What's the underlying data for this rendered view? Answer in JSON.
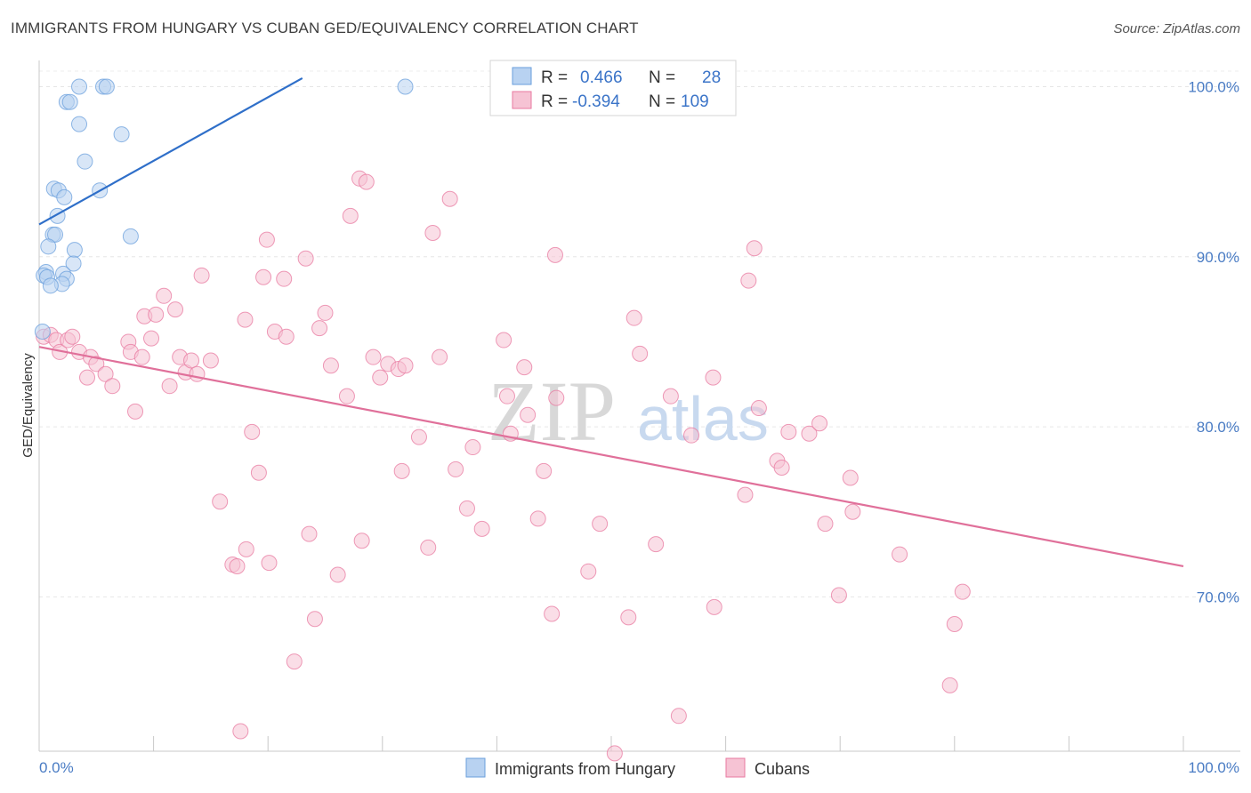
{
  "title": "IMMIGRANTS FROM HUNGARY VS CUBAN GED/EQUIVALENCY CORRELATION CHART",
  "source": "Source: ZipAtlas.com",
  "watermark": {
    "part1": "ZIP",
    "part2": "atlas"
  },
  "legend": {
    "rows": [
      {
        "r_label": "R =",
        "r_value": "0.466",
        "n_label": "N =",
        "n_value": "28"
      },
      {
        "r_label": "R =",
        "r_value": "-0.394",
        "n_label": "N =",
        "n_value": "109"
      }
    ]
  },
  "bottom_legend": [
    "Immigrants from Hungary",
    "Cubans"
  ],
  "chart_data": {
    "type": "scatter",
    "title": "IMMIGRANTS FROM HUNGARY VS CUBAN GED/EQUIVALENCY CORRELATION CHART",
    "xlabel": "",
    "ylabel": "GED/Equivalency",
    "x_tick_labels": [
      "0.0%",
      "100.0%"
    ],
    "y_tick_labels": [
      "100.0%",
      "90.0%",
      "80.0%",
      "70.0%"
    ],
    "y_ticks": [
      100,
      90,
      80,
      70
    ],
    "xlim": [
      0,
      100
    ],
    "ylim": [
      60.5,
      101
    ],
    "grid": true,
    "legend_position": "top-center",
    "series": [
      {
        "name": "Immigrants from Hungary",
        "color": "#6a9fdc",
        "fill": "#b8d2f1",
        "trend": {
          "x": [
            0,
            23
          ],
          "y": [
            91.9,
            100.5
          ]
        },
        "points": [
          [
            3.5,
            100.0
          ],
          [
            5.6,
            100.0
          ],
          [
            5.9,
            100.0
          ],
          [
            32.0,
            100.0
          ],
          [
            2.4,
            99.1
          ],
          [
            2.7,
            99.1
          ],
          [
            3.5,
            97.8
          ],
          [
            7.2,
            97.2
          ],
          [
            4.0,
            95.6
          ],
          [
            1.3,
            94.0
          ],
          [
            1.7,
            93.9
          ],
          [
            5.3,
            93.9
          ],
          [
            2.2,
            93.5
          ],
          [
            1.6,
            92.4
          ],
          [
            1.2,
            91.3
          ],
          [
            1.4,
            91.3
          ],
          [
            8.0,
            91.2
          ],
          [
            0.8,
            90.6
          ],
          [
            3.1,
            90.4
          ],
          [
            3.0,
            89.6
          ],
          [
            0.6,
            89.1
          ],
          [
            0.4,
            88.9
          ],
          [
            0.7,
            88.8
          ],
          [
            2.1,
            89.0
          ],
          [
            2.4,
            88.7
          ],
          [
            2.0,
            88.4
          ],
          [
            1.0,
            88.3
          ],
          [
            0.3,
            85.6
          ]
        ]
      },
      {
        "name": "Cubans",
        "color": "#e87aa0",
        "fill": "#f6c3d4",
        "trend": {
          "x": [
            0,
            100
          ],
          "y": [
            84.7,
            71.8
          ]
        },
        "points": [
          [
            0.4,
            85.3
          ],
          [
            1.0,
            85.4
          ],
          [
            1.5,
            85.1
          ],
          [
            1.8,
            84.4
          ],
          [
            2.5,
            85.1
          ],
          [
            2.9,
            85.3
          ],
          [
            3.5,
            84.4
          ],
          [
            4.5,
            84.1
          ],
          [
            4.2,
            82.9
          ],
          [
            5.0,
            83.7
          ],
          [
            5.8,
            83.1
          ],
          [
            6.4,
            82.4
          ],
          [
            7.8,
            85.0
          ],
          [
            8.0,
            84.4
          ],
          [
            8.4,
            80.9
          ],
          [
            9.0,
            84.1
          ],
          [
            9.2,
            86.5
          ],
          [
            9.8,
            85.2
          ],
          [
            10.2,
            86.6
          ],
          [
            10.9,
            87.7
          ],
          [
            11.4,
            82.4
          ],
          [
            11.9,
            86.9
          ],
          [
            12.3,
            84.1
          ],
          [
            12.8,
            83.2
          ],
          [
            13.3,
            83.9
          ],
          [
            13.8,
            83.1
          ],
          [
            14.2,
            88.9
          ],
          [
            15.0,
            83.9
          ],
          [
            15.8,
            75.6
          ],
          [
            16.9,
            71.9
          ],
          [
            17.3,
            71.8
          ],
          [
            17.6,
            62.1
          ],
          [
            18.1,
            72.8
          ],
          [
            18.0,
            86.3
          ],
          [
            18.6,
            79.7
          ],
          [
            19.2,
            77.3
          ],
          [
            19.6,
            88.8
          ],
          [
            19.9,
            91.0
          ],
          [
            20.1,
            72.0
          ],
          [
            20.6,
            85.6
          ],
          [
            21.4,
            88.7
          ],
          [
            21.6,
            85.3
          ],
          [
            22.3,
            66.2
          ],
          [
            23.3,
            89.9
          ],
          [
            23.6,
            73.7
          ],
          [
            24.1,
            68.7
          ],
          [
            24.5,
            85.8
          ],
          [
            25.0,
            86.7
          ],
          [
            25.5,
            83.6
          ],
          [
            26.1,
            71.3
          ],
          [
            26.9,
            81.8
          ],
          [
            27.2,
            92.4
          ],
          [
            28.0,
            94.6
          ],
          [
            28.2,
            73.3
          ],
          [
            28.6,
            94.4
          ],
          [
            29.2,
            84.1
          ],
          [
            29.8,
            82.9
          ],
          [
            30.5,
            83.7
          ],
          [
            31.4,
            83.4
          ],
          [
            31.7,
            77.4
          ],
          [
            32.0,
            83.6
          ],
          [
            33.2,
            79.4
          ],
          [
            34.0,
            72.9
          ],
          [
            34.4,
            91.4
          ],
          [
            35.0,
            84.1
          ],
          [
            35.9,
            93.4
          ],
          [
            36.4,
            77.5
          ],
          [
            37.4,
            75.2
          ],
          [
            37.9,
            78.8
          ],
          [
            38.7,
            74.0
          ],
          [
            40.6,
            85.1
          ],
          [
            40.9,
            81.8
          ],
          [
            41.2,
            79.6
          ],
          [
            42.4,
            83.5
          ],
          [
            42.7,
            80.7
          ],
          [
            43.6,
            74.6
          ],
          [
            44.1,
            77.4
          ],
          [
            44.8,
            69.0
          ],
          [
            45.1,
            90.1
          ],
          [
            48.0,
            71.5
          ],
          [
            49.0,
            74.3
          ],
          [
            51.5,
            68.8
          ],
          [
            52.0,
            86.4
          ],
          [
            52.5,
            84.3
          ],
          [
            53.9,
            73.1
          ],
          [
            55.2,
            81.8
          ],
          [
            55.9,
            63.0
          ],
          [
            57.0,
            79.5
          ],
          [
            58.9,
            82.9
          ],
          [
            61.7,
            76.0
          ],
          [
            62.5,
            90.5
          ],
          [
            62.9,
            81.1
          ],
          [
            62.0,
            88.6
          ],
          [
            64.5,
            78.0
          ],
          [
            64.9,
            77.6
          ],
          [
            65.5,
            79.7
          ],
          [
            67.3,
            79.6
          ],
          [
            68.2,
            80.2
          ],
          [
            68.7,
            74.3
          ],
          [
            69.9,
            70.1
          ],
          [
            70.9,
            77.0
          ],
          [
            71.1,
            75.0
          ],
          [
            75.2,
            72.5
          ],
          [
            79.6,
            64.8
          ],
          [
            80.0,
            68.4
          ],
          [
            80.7,
            70.3
          ],
          [
            50.3,
            60.8
          ],
          [
            45.2,
            81.7
          ],
          [
            59.0,
            69.4
          ]
        ]
      }
    ]
  }
}
